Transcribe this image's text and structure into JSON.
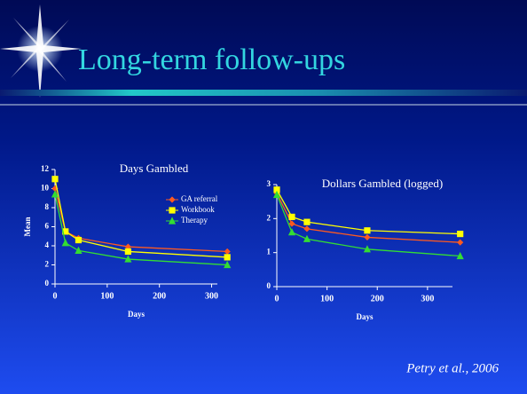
{
  "header": {
    "title": "Long-term follow-ups"
  },
  "citation": "Petry et al., 2006",
  "chart_data": [
    {
      "type": "line",
      "title": "Days Gambled",
      "x_label": "Days",
      "y_label": "Mean",
      "legend": "upper right",
      "series": [
        {
          "name": "GA referral",
          "color": "#ff5a1f",
          "marker": "diamond",
          "x": [
            0,
            20,
            45,
            140,
            330
          ],
          "values": [
            10,
            5.5,
            4.8,
            3.9,
            3.4
          ]
        },
        {
          "name": "Workbook",
          "color": "#ffff00",
          "marker": "square",
          "x": [
            0,
            20,
            45,
            140,
            330
          ],
          "values": [
            11,
            5.5,
            4.6,
            3.4,
            2.8
          ]
        },
        {
          "name": "Therapy",
          "color": "#33dd33",
          "marker": "triangle",
          "x": [
            0,
            20,
            45,
            140,
            330
          ],
          "values": [
            9.4,
            4.3,
            3.5,
            2.6,
            2.0
          ]
        }
      ],
      "xlim": [
        0,
        345
      ],
      "xticks": [
        0,
        100,
        200,
        300
      ],
      "ylim": [
        0,
        12
      ],
      "yticks": [
        0,
        2,
        4,
        6,
        8,
        10,
        12
      ]
    },
    {
      "type": "line",
      "title": "Dollars Gambled (logged)",
      "x_label": "Days",
      "series": [
        {
          "name": "GA referral",
          "color": "#ff5a1f",
          "marker": "diamond",
          "x": [
            0,
            30,
            60,
            180,
            365
          ],
          "values": [
            2.75,
            1.85,
            1.7,
            1.45,
            1.3
          ]
        },
        {
          "name": "Workbook",
          "color": "#ffff00",
          "marker": "square",
          "x": [
            0,
            30,
            60,
            180,
            365
          ],
          "values": [
            2.85,
            2.05,
            1.9,
            1.65,
            1.55
          ]
        },
        {
          "name": "Therapy",
          "color": "#33dd33",
          "marker": "triangle",
          "x": [
            0,
            30,
            60,
            180,
            365
          ],
          "values": [
            2.7,
            1.6,
            1.4,
            1.1,
            0.9
          ]
        }
      ],
      "xlim": [
        0,
        385
      ],
      "xticks": [
        0,
        100,
        200,
        300
      ],
      "ylim": [
        0,
        3
      ],
      "yticks": [
        0,
        1,
        2,
        3
      ]
    }
  ]
}
